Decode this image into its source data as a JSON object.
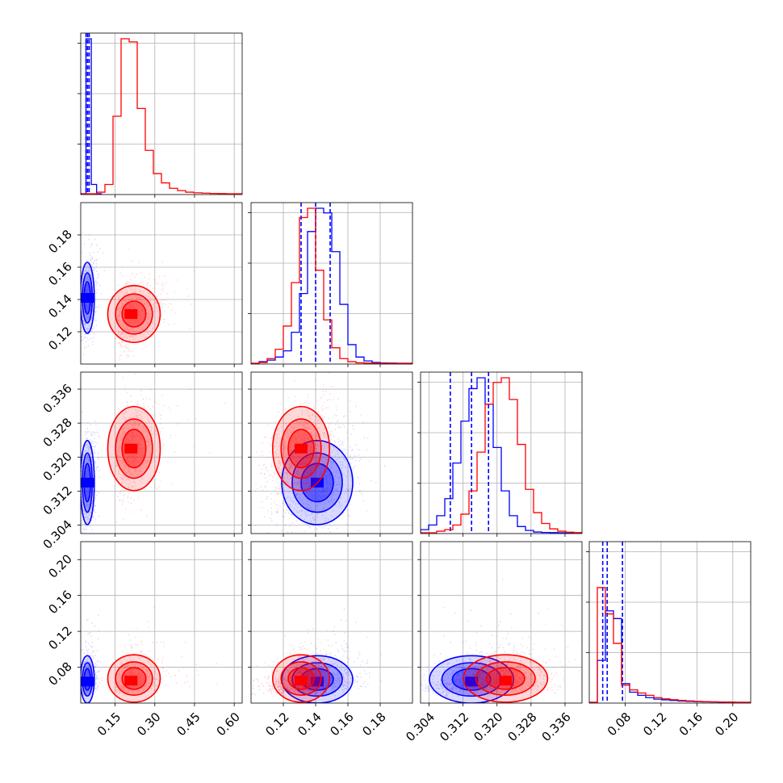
{
  "chart_data": {
    "type": "corner",
    "title": "",
    "parameters": [
      "",
      "",
      "",
      ""
    ],
    "ranges": [
      [
        0.02,
        0.63
      ],
      [
        0.1,
        0.2
      ],
      [
        0.302,
        0.34
      ],
      [
        0.04,
        0.22
      ]
    ],
    "ticks": [
      [
        0.15,
        0.3,
        0.45,
        0.6
      ],
      [
        0.12,
        0.14,
        0.16,
        0.18
      ],
      [
        0.304,
        0.312,
        0.32,
        0.328,
        0.336
      ],
      [
        0.08,
        0.12,
        0.16,
        0.2
      ]
    ],
    "tick_labels": [
      [
        "0.15",
        "0.30",
        "0.45",
        "0.60"
      ],
      [
        "0.12",
        "0.14",
        "0.16",
        "0.18"
      ],
      [
        "0.304",
        "0.312",
        "0.320",
        "0.328",
        "0.336"
      ],
      [
        "0.08",
        "0.12",
        "0.16",
        "0.20"
      ]
    ],
    "grid": true,
    "series": [
      {
        "color": "#0000ff",
        "centers": [
          0.045,
          0.141,
          0.314,
          0.064
        ],
        "widths": [
          0.012,
          0.01,
          0.0045,
          0.012
        ],
        "quantile_lines": [
          [
            0.04,
            0.046,
            0.052
          ],
          [
            0.131,
            0.14,
            0.149
          ],
          [
            0.309,
            0.314,
            0.318
          ],
          [
            0.055,
            0.06,
            0.077
          ]
        ],
        "histograms": [
          {
            "edges_range": [
              0.02,
              0.1
            ],
            "values": [
              0,
              1.0,
              0.06,
              0
            ]
          },
          {
            "edges_range": [
              0.1,
              0.2
            ],
            "values": [
              0,
              0.01,
              0.02,
              0.04,
              0.08,
              0.2,
              0.45,
              0.85,
              1.0,
              0.97,
              0.72,
              0.38,
              0.12,
              0.04,
              0.015,
              0.005,
              0.002,
              0.001,
              0,
              0
            ]
          },
          {
            "edges_range": [
              0.302,
              0.34
            ],
            "values": [
              0.02,
              0.05,
              0.11,
              0.22,
              0.45,
              0.72,
              0.93,
              1.0,
              0.83,
              0.55,
              0.27,
              0.11,
              0.04,
              0.015,
              0.005,
              0.002,
              0.001,
              0,
              0,
              0
            ]
          },
          {
            "edges_range": [
              0.04,
              0.22
            ],
            "values": [
              0,
              0.27,
              0.59,
              0.54,
              0.12,
              0.065,
              0.045,
              0.03,
              0.02,
              0.016,
              0.012,
              0.008,
              0.006,
              0.004,
              0.003,
              0.002,
              0.001,
              0.001,
              0,
              0
            ]
          }
        ]
      },
      {
        "color": "#ff0000",
        "centers": [
          0.21,
          0.131,
          0.322,
          0.065
        ],
        "widths": [
          0.045,
          0.008,
          0.0045,
          0.012
        ],
        "quantile_lines": [],
        "histograms": [
          {
            "edges_range": [
              0.02,
              0.63
            ],
            "values": [
              0,
              0,
              0.01,
              0.06,
              0.5,
              1.0,
              0.98,
              0.55,
              0.28,
              0.13,
              0.07,
              0.035,
              0.02,
              0.01,
              0.006,
              0.004,
              0.002,
              0.001,
              0,
              0
            ]
          },
          {
            "edges_range": [
              0.1,
              0.2
            ],
            "values": [
              0,
              0.005,
              0.03,
              0.09,
              0.24,
              0.52,
              0.94,
              1.0,
              0.6,
              0.28,
              0.1,
              0.03,
              0.01,
              0.003,
              0.001,
              0,
              0,
              0,
              0,
              0
            ]
          },
          {
            "edges_range": [
              0.302,
              0.34
            ],
            "values": [
              0,
              0,
              0.01,
              0.02,
              0.05,
              0.12,
              0.27,
              0.52,
              0.83,
              0.97,
              1.0,
              0.86,
              0.57,
              0.28,
              0.13,
              0.06,
              0.025,
              0.01,
              0.004,
              0.001
            ]
          },
          {
            "edges_range": [
              0.04,
              0.22
            ],
            "values": [
              0,
              0.74,
              0.57,
              0.38,
              0.11,
              0.08,
              0.06,
              0.045,
              0.03,
              0.022,
              0.017,
              0.012,
              0.009,
              0.006,
              0.004,
              0.003,
              0.002,
              0.001,
              0,
              0
            ]
          }
        ]
      }
    ]
  }
}
